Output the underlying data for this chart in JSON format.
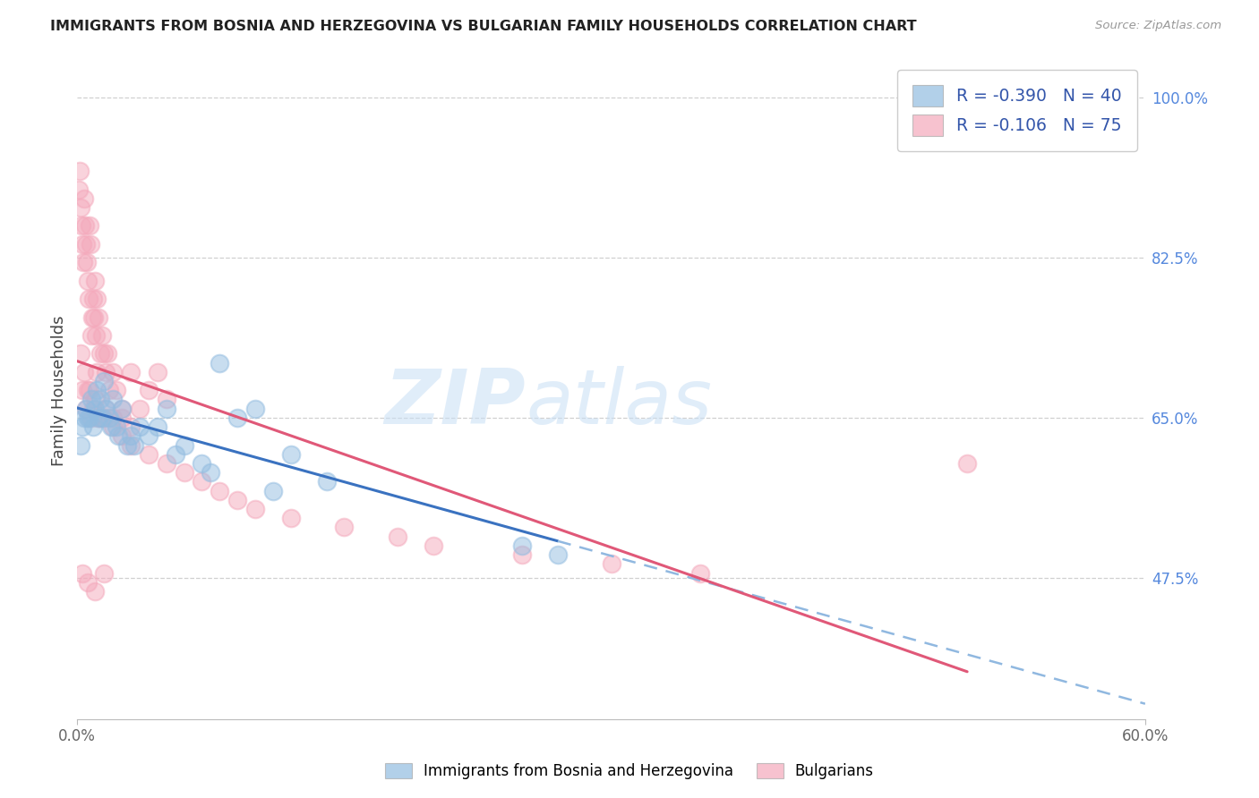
{
  "title": "IMMIGRANTS FROM BOSNIA AND HERZEGOVINA VS BULGARIAN FAMILY HOUSEHOLDS CORRELATION CHART",
  "source": "Source: ZipAtlas.com",
  "ylabel": "Family Households",
  "right_yticks": [
    100.0,
    82.5,
    65.0,
    47.5
  ],
  "xlim": [
    0.0,
    60.0
  ],
  "ylim": [
    32.0,
    104.0
  ],
  "blue_R": -0.39,
  "blue_N": 40,
  "pink_R": -0.106,
  "pink_N": 75,
  "blue_color": "#92bce0",
  "pink_color": "#f4a8bb",
  "blue_line_color": "#3a72c0",
  "pink_line_color": "#e05878",
  "blue_label": "Immigrants from Bosnia and Herzegovina",
  "pink_label": "Bulgarians",
  "blue_scatter_x": [
    0.2,
    0.3,
    0.5,
    0.6,
    0.8,
    0.9,
    1.0,
    1.1,
    1.2,
    1.3,
    1.5,
    1.6,
    1.8,
    2.0,
    2.2,
    2.5,
    2.8,
    3.0,
    3.5,
    4.0,
    5.0,
    6.0,
    7.0,
    8.0,
    9.0,
    10.0,
    12.0,
    14.0,
    0.4,
    0.7,
    1.4,
    1.9,
    2.3,
    3.2,
    4.5,
    5.5,
    7.5,
    11.0,
    25.0,
    27.0
  ],
  "blue_scatter_y": [
    62.0,
    64.0,
    66.0,
    65.0,
    67.0,
    64.0,
    66.0,
    68.0,
    65.0,
    67.0,
    69.0,
    66.0,
    65.0,
    67.0,
    64.0,
    66.0,
    62.0,
    63.0,
    64.0,
    63.0,
    66.0,
    62.0,
    60.0,
    71.0,
    65.0,
    66.0,
    61.0,
    58.0,
    65.0,
    65.0,
    65.0,
    64.0,
    63.0,
    62.0,
    64.0,
    61.0,
    59.0,
    57.0,
    51.0,
    50.0
  ],
  "pink_scatter_x": [
    0.1,
    0.15,
    0.2,
    0.25,
    0.3,
    0.35,
    0.4,
    0.45,
    0.5,
    0.55,
    0.6,
    0.65,
    0.7,
    0.75,
    0.8,
    0.85,
    0.9,
    0.95,
    1.0,
    1.05,
    1.1,
    1.2,
    1.3,
    1.4,
    1.5,
    1.6,
    1.7,
    1.8,
    2.0,
    2.2,
    2.5,
    3.0,
    3.5,
    4.0,
    4.5,
    5.0,
    0.3,
    0.5,
    0.7,
    0.9,
    1.1,
    1.3,
    1.6,
    2.0,
    2.5,
    3.0,
    0.2,
    0.4,
    0.6,
    0.8,
    1.0,
    1.2,
    1.5,
    2.0,
    2.5,
    3.0,
    4.0,
    5.0,
    6.0,
    7.0,
    8.0,
    9.0,
    10.0,
    12.0,
    15.0,
    18.0,
    20.0,
    25.0,
    30.0,
    35.0,
    50.0,
    0.3,
    0.6,
    1.0,
    1.5
  ],
  "pink_scatter_y": [
    90.0,
    92.0,
    88.0,
    86.0,
    84.0,
    82.0,
    89.0,
    86.0,
    84.0,
    82.0,
    80.0,
    78.0,
    86.0,
    84.0,
    74.0,
    76.0,
    78.0,
    76.0,
    80.0,
    74.0,
    78.0,
    76.0,
    72.0,
    74.0,
    72.0,
    70.0,
    72.0,
    68.0,
    70.0,
    68.0,
    66.0,
    70.0,
    66.0,
    68.0,
    70.0,
    67.0,
    68.0,
    66.0,
    68.0,
    66.0,
    70.0,
    65.0,
    66.0,
    65.0,
    65.0,
    64.0,
    72.0,
    70.0,
    68.0,
    65.0,
    67.0,
    65.0,
    65.0,
    64.0,
    63.0,
    62.0,
    61.0,
    60.0,
    59.0,
    58.0,
    57.0,
    56.0,
    55.0,
    54.0,
    53.0,
    52.0,
    51.0,
    50.0,
    49.0,
    48.0,
    60.0,
    48.0,
    47.0,
    46.0,
    48.0
  ],
  "watermark_line1": "ZIP",
  "watermark_line2": "atlas",
  "background_color": "#ffffff",
  "grid_color": "#d0d0d0",
  "spine_color": "#bbbbbb"
}
